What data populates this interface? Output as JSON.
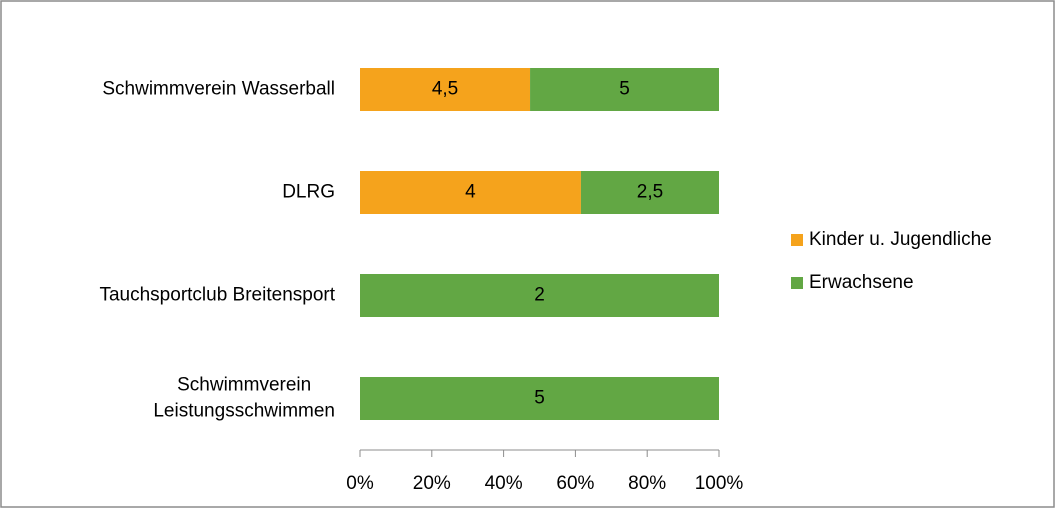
{
  "chart_data": {
    "type": "bar",
    "orientation": "horizontal",
    "stacking": "percent",
    "categories": [
      "Schwimmverein Wasserball",
      "DLRG",
      "Tauchsportclub Breitensport",
      "Schwimmverein Leistungsschwimmen"
    ],
    "series": [
      {
        "name": "Kinder u. Jugendliche",
        "color": "#f5a31c",
        "values": [
          4.5,
          4,
          null,
          null
        ],
        "value_labels": [
          "4,5",
          "4",
          null,
          null
        ]
      },
      {
        "name": "Erwachsene",
        "color": "#62a744",
        "values": [
          5,
          2.5,
          2,
          5
        ],
        "value_labels": [
          "5",
          "2,5",
          "2",
          "5"
        ]
      }
    ],
    "xlim": [
      0,
      100
    ],
    "xticks": [
      {
        "value": 0,
        "label": "0%"
      },
      {
        "value": 20,
        "label": "20%"
      },
      {
        "value": 40,
        "label": "40%"
      },
      {
        "value": 60,
        "label": "60%"
      },
      {
        "value": 80,
        "label": "80%"
      },
      {
        "value": 100,
        "label": "100%"
      }
    ],
    "legend": "right"
  }
}
